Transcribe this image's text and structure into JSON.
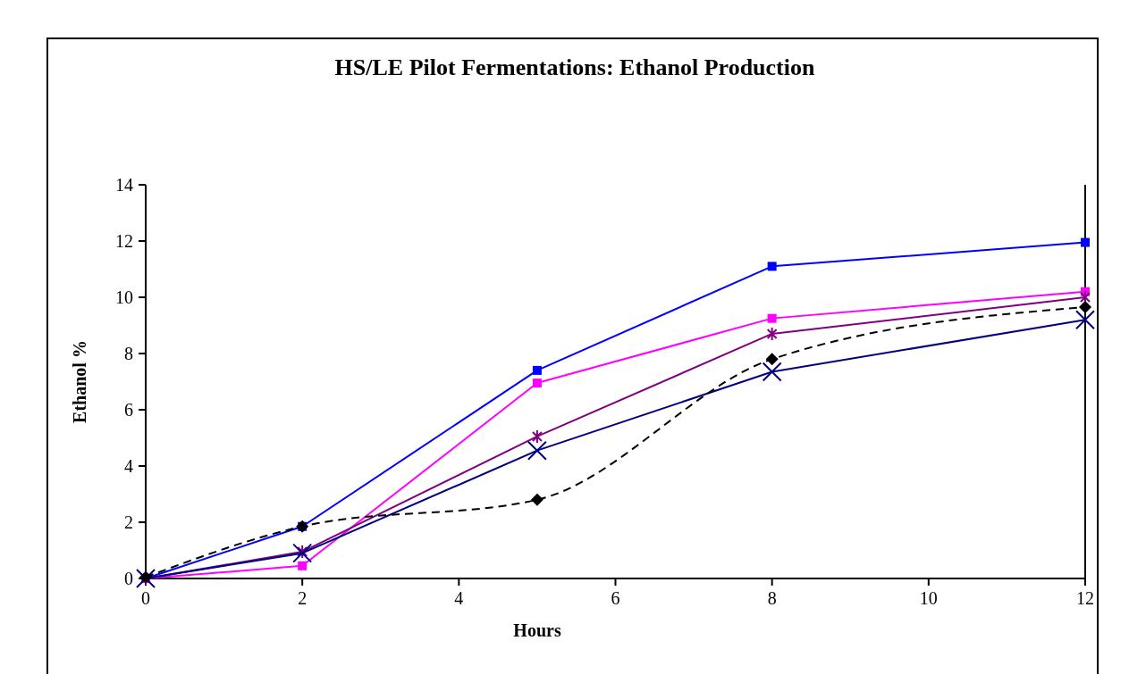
{
  "chart_data": {
    "type": "line",
    "title": "HS/LE Pilot Fermentations: Ethanol Production",
    "xlabel": "Hours",
    "ylabel": "Ethanol %",
    "x": [
      0,
      2,
      5,
      8,
      12
    ],
    "series": [
      {
        "color": "#0000ff",
        "values": [
          0,
          1.85,
          7.4,
          11.1,
          11.95
        ],
        "marker": "square"
      },
      {
        "color": "#ff00ff",
        "values": [
          0,
          0.45,
          6.95,
          9.25,
          10.2
        ],
        "marker": "square"
      },
      {
        "color": "#800080",
        "values": [
          0,
          0.95,
          5.05,
          8.7,
          10.0
        ],
        "marker": "cross"
      },
      {
        "color": "#000080",
        "values": [
          0,
          0.9,
          4.55,
          7.35,
          9.2
        ],
        "marker": "cross"
      },
      {
        "color": "#000000",
        "values": [
          0.05,
          1.85,
          2.8,
          7.8,
          9.65
        ],
        "marker": "diamond",
        "line_style": "dashed"
      }
    ],
    "xlim": [
      0,
      12
    ],
    "xticks": [
      0,
      2,
      4,
      6,
      8,
      10,
      12
    ],
    "ylim": [
      0,
      14
    ],
    "yticks": [
      0,
      2,
      4,
      6,
      8,
      10,
      12,
      14
    ],
    "grid": false
  }
}
